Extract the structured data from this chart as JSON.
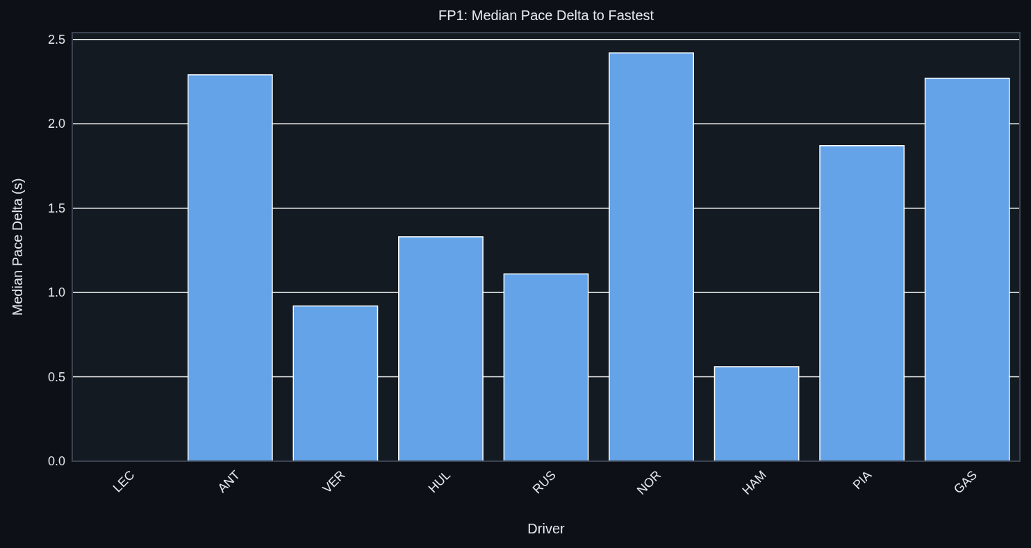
{
  "chart_data": {
    "type": "bar",
    "title": "FP1: Median Pace Delta to Fastest",
    "xlabel": "Driver",
    "ylabel": "Median Pace Delta (s)",
    "categories": [
      "LEC",
      "ANT",
      "VER",
      "HUL",
      "RUS",
      "NOR",
      "HAM",
      "PIA",
      "GAS"
    ],
    "values": [
      0.0,
      2.29,
      0.92,
      1.33,
      1.11,
      2.42,
      0.56,
      1.87,
      2.27
    ],
    "color": "#64a3e8",
    "ylim": [
      0,
      2.54
    ],
    "yticks": [
      {
        "value": 0,
        "label": "0.0"
      },
      {
        "value": 0.5,
        "label": "0.5"
      },
      {
        "value": 1,
        "label": "1.0"
      },
      {
        "value": 1.5,
        "label": "1.5"
      },
      {
        "value": 2,
        "label": "2.0"
      },
      {
        "value": 2.5,
        "label": "2.5"
      }
    ],
    "grid": "y"
  }
}
